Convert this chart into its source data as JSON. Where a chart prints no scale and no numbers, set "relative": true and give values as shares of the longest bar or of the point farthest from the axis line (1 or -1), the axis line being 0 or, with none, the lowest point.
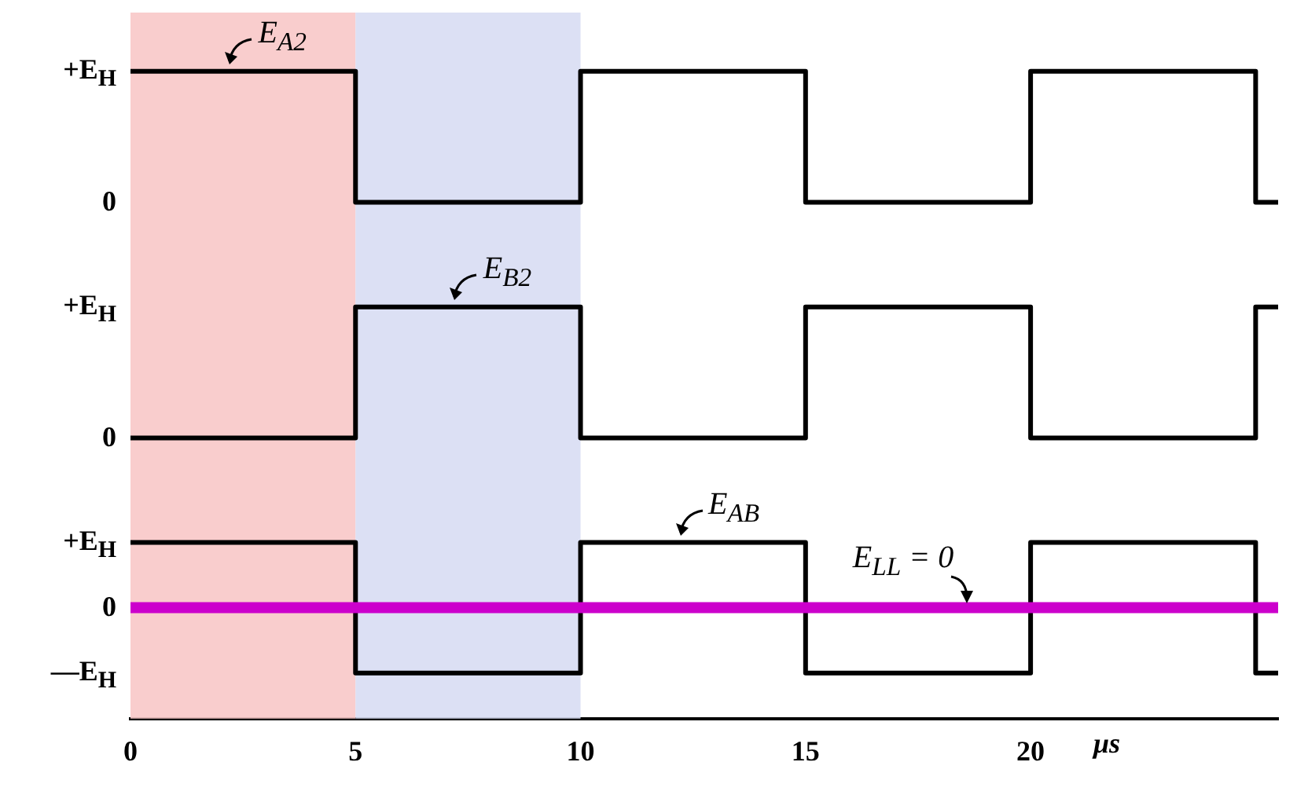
{
  "chart_data": [
    {
      "type": "step",
      "relative": true,
      "x": [
        0,
        5,
        10,
        15,
        20,
        25,
        25.5
      ],
      "series": [
        {
          "color": "#000000",
          "values": [
            1,
            0,
            1,
            0,
            1,
            0,
            0
          ]
        }
      ],
      "xlim": [
        0,
        25.5
      ],
      "tick_labels": false,
      "bands": [
        {
          "axis": "x",
          "from": 0,
          "to": 5,
          "color": "#f8c8c8"
        },
        {
          "axis": "x",
          "from": 5,
          "to": 10,
          "color": "#d8ddf3"
        }
      ],
      "annotations": [
        "+E$_{H}$",
        "0",
        {
          "text": "E$_{A2}$",
          "x": 2,
          "y": 1
        }
      ]
    },
    {
      "type": "step",
      "relative": true,
      "x": [
        0,
        5,
        10,
        15,
        20,
        25,
        25.5
      ],
      "series": [
        {
          "color": "#000000",
          "values": [
            0,
            1,
            0,
            1,
            0,
            1,
            1
          ]
        }
      ],
      "xlim": [
        0,
        25.5
      ],
      "tick_labels": false,
      "bands": [
        {
          "axis": "x",
          "from": 0,
          "to": 5,
          "color": "#f8c8c8"
        },
        {
          "axis": "x",
          "from": 5,
          "to": 10,
          "color": "#d8ddf3"
        }
      ],
      "annotations": [
        "+E$_{H}$",
        "0",
        {
          "text": "E$_{B2}$",
          "x": 7,
          "y": 1
        }
      ]
    },
    {
      "type": "step",
      "relative": true,
      "x": [
        0,
        5,
        10,
        15,
        20,
        25,
        25.5
      ],
      "series": [
        {
          "color": "#000000",
          "values": [
            1,
            -1,
            1,
            -1,
            1,
            -1,
            -1
          ]
        }
      ],
      "xlim": [
        0,
        25.5
      ],
      "xticks": [
        0,
        5,
        10,
        15,
        20
      ],
      "xlabel": "μs",
      "tick_labels": "x",
      "bands": [
        {
          "axis": "x",
          "from": 0,
          "to": 5,
          "color": "#f8c8c8"
        },
        {
          "axis": "x",
          "from": 5,
          "to": 10,
          "color": "#d8ddf3"
        }
      ],
      "ref_lines": [
        {
          "axis": "y",
          "value": 0,
          "color": "#cc00cc"
        }
      ],
      "annotations": [
        "+E$_{H}$",
        "0",
        "—E$_{H}$",
        {
          "text": "E$_{AB}$",
          "x": 12,
          "y": 1
        },
        {
          "text": "E$_{LL}$ = 0",
          "x": 18.5,
          "y": 0
        }
      ]
    }
  ]
}
